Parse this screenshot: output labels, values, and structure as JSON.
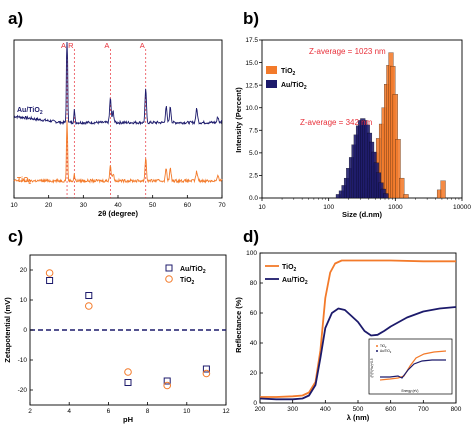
{
  "colors": {
    "orange": "#f37a2a",
    "navy": "#1c1a6b",
    "red": "#e8303a",
    "black": "#000000"
  },
  "panels": {
    "a": "a)",
    "b": "b)",
    "c": "c)",
    "d": "d)"
  },
  "chart_data": [
    {
      "id": "a",
      "type": "line",
      "xlabel": "2θ (degree)",
      "ylabel": "",
      "xlim": [
        10,
        70
      ],
      "x_ticks": [
        "10",
        "20",
        "30",
        "40",
        "50",
        "60",
        "70"
      ],
      "peak_markers": [
        {
          "label": "A",
          "x": 25.3
        },
        {
          "label": "R",
          "x": 27.4
        },
        {
          "label": "A",
          "x": 37.8
        },
        {
          "label": "A",
          "x": 48.0
        }
      ],
      "series": [
        {
          "name": "Au/TiO2",
          "label_main": "Au/TiO",
          "label_sub": "2",
          "color": "#1c1a6b",
          "baseline": 0.62,
          "peaks": [
            [
              25.3,
              0.9,
              0.22
            ],
            [
              27.4,
              0.12,
              0.2
            ],
            [
              37.8,
              0.22,
              0.3
            ],
            [
              38.6,
              0.1,
              0.3
            ],
            [
              48.0,
              0.3,
              0.28
            ],
            [
              53.9,
              0.14,
              0.3
            ],
            [
              55.1,
              0.14,
              0.3
            ],
            [
              62.7,
              0.12,
              0.35
            ],
            [
              68.8,
              0.05,
              0.3
            ],
            [
              70.2,
              0.05,
              0.3
            ]
          ]
        },
        {
          "name": "TiO2",
          "label_main": "TiO",
          "label_sub": "2",
          "color": "#f37a2a",
          "baseline": 0.1,
          "peaks": [
            [
              25.3,
              0.55,
              0.22
            ],
            [
              27.4,
              0.06,
              0.2
            ],
            [
              37.8,
              0.14,
              0.3
            ],
            [
              38.6,
              0.07,
              0.3
            ],
            [
              48.0,
              0.21,
              0.28
            ],
            [
              53.9,
              0.11,
              0.3
            ],
            [
              55.1,
              0.11,
              0.3
            ],
            [
              62.7,
              0.08,
              0.35
            ],
            [
              68.8,
              0.04,
              0.3
            ],
            [
              70.2,
              0.04,
              0.3
            ]
          ]
        }
      ]
    },
    {
      "id": "b",
      "type": "bar",
      "xlabel": "Size (d.nm)",
      "ylabel": "Intensity (Percent)",
      "xscale": "log",
      "xlim": [
        10,
        10000
      ],
      "ylim": [
        0,
        17.5
      ],
      "x_ticks": [
        "10",
        "100",
        "1000",
        "10000"
      ],
      "y_ticks": [
        "0.0",
        "2.5",
        "5.0",
        "7.5",
        "10.0",
        "12.5",
        "15.0",
        "17.5"
      ],
      "annotations": [
        "Z-average = 1023 nm",
        "Z-average = 342 nm"
      ],
      "series": [
        {
          "name": "TiO2",
          "label_main": "TiO",
          "label_sub": "2",
          "color": "#f37a2a",
          "x": [
            340,
            380,
            420,
            460,
            510,
            560,
            620,
            680,
            740,
            800,
            860,
            920,
            1000,
            1100,
            1250,
            1450,
            4600,
            5200
          ],
          "values": [
            0.5,
            1.0,
            2.2,
            3.5,
            5.0,
            6.6,
            8.2,
            10.0,
            12.6,
            14.7,
            16.1,
            14.6,
            11.5,
            6.5,
            2.2,
            0.4,
            0.9,
            1.9
          ]
        },
        {
          "name": "Au/TiO2",
          "label_main": "Au/TiO",
          "label_sub": "2",
          "color": "#1c1a6b",
          "x": [
            140,
            155,
            170,
            185,
            200,
            220,
            240,
            260,
            280,
            300,
            325,
            350,
            380,
            410,
            440,
            480,
            520,
            560,
            610,
            660,
            720
          ],
          "values": [
            0.4,
            0.8,
            1.4,
            2.2,
            3.3,
            4.5,
            5.9,
            7.0,
            8.0,
            8.6,
            8.8,
            8.6,
            8.1,
            7.2,
            6.2,
            5.1,
            3.9,
            2.8,
            1.7,
            1.0,
            0.5
          ]
        }
      ]
    },
    {
      "id": "c",
      "type": "scatter",
      "xlabel": "pH",
      "ylabel": "Zetapotential (mV)",
      "xlim": [
        2,
        12
      ],
      "ylim": [
        -25,
        25
      ],
      "x_ticks": [
        "2",
        "4",
        "6",
        "8",
        "10",
        "12"
      ],
      "y_ticks": [
        "-20",
        "-10",
        "0",
        "10",
        "20"
      ],
      "series": [
        {
          "name": "Au/TiO2",
          "label_main": "Au/TiO",
          "label_sub": "2",
          "marker": "square",
          "color": "#1c1a6b",
          "x": [
            3,
            5,
            7,
            9,
            11
          ],
          "values": [
            16.5,
            11.5,
            -17.5,
            -17.0,
            -13.0
          ]
        },
        {
          "name": "TiO2",
          "label_main": "TiO",
          "label_sub": "2",
          "marker": "circle",
          "color": "#f37a2a",
          "x": [
            3,
            5,
            7,
            9,
            11
          ],
          "values": [
            19.0,
            8.0,
            -14.0,
            -18.5,
            -14.5
          ]
        }
      ]
    },
    {
      "id": "d",
      "type": "line",
      "xlabel": "λ (nm)",
      "ylabel": "Reflectance (%)",
      "xlim": [
        200,
        800
      ],
      "ylim": [
        0,
        100
      ],
      "x_ticks": [
        "200",
        "300",
        "400",
        "500",
        "600",
        "700",
        "800"
      ],
      "y_ticks": [
        "0",
        "20",
        "40",
        "60",
        "80",
        "100"
      ],
      "series": [
        {
          "name": "TiO2",
          "label_main": "TiO",
          "label_sub": "2",
          "color": "#f37a2a",
          "x": [
            200,
            250,
            300,
            330,
            350,
            370,
            385,
            400,
            415,
            430,
            450,
            500,
            600,
            700,
            800
          ],
          "values": [
            4,
            4,
            4.5,
            5,
            7,
            14,
            35,
            70,
            87,
            93,
            95,
            95,
            95,
            94.5,
            94.5
          ]
        },
        {
          "name": "Au/TiO2",
          "label_main": "Au/TiO",
          "label_sub": "2",
          "color": "#1c1a6b",
          "x": [
            200,
            250,
            300,
            330,
            350,
            370,
            385,
            400,
            420,
            440,
            460,
            480,
            500,
            520,
            540,
            560,
            580,
            600,
            650,
            700,
            750,
            800
          ],
          "values": [
            3,
            2.5,
            2.5,
            3,
            5,
            12,
            30,
            50,
            60,
            63,
            62,
            58,
            54,
            48,
            45,
            45.5,
            48,
            51,
            57,
            61,
            63,
            64
          ]
        }
      ],
      "inset": {
        "xlabel": "Energy (eV)",
        "ylabel": "(F(R)*hv)^0.5",
        "legend": [
          "TiO2",
          "Au/TiO2"
        ],
        "legend_main": [
          "TiO",
          "Au/TiO"
        ],
        "legend_sub": [
          "2",
          "2"
        ]
      }
    }
  ]
}
